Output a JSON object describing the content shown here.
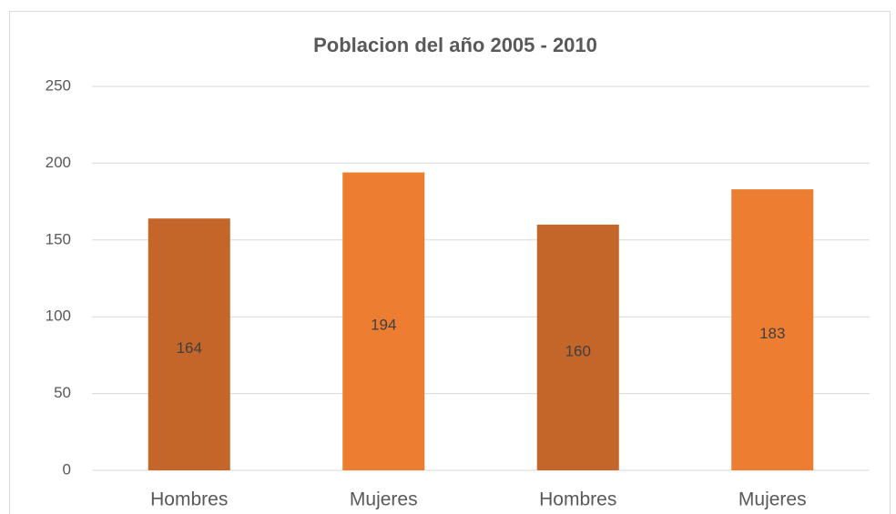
{
  "chart_data": {
    "type": "bar",
    "title": "Poblacion del año 2005 - 2010",
    "categories": [
      "Hombres",
      "Mujeres",
      "Hombres",
      "Mujeres"
    ],
    "values": [
      164,
      194,
      160,
      183
    ],
    "colors": [
      "#c4652a",
      "#ed7d31",
      "#c4652a",
      "#ed7d31"
    ],
    "ylim": [
      0,
      250
    ],
    "yticks": [
      0,
      50,
      100,
      150,
      200,
      250
    ],
    "grid": true,
    "data_labels": true
  }
}
